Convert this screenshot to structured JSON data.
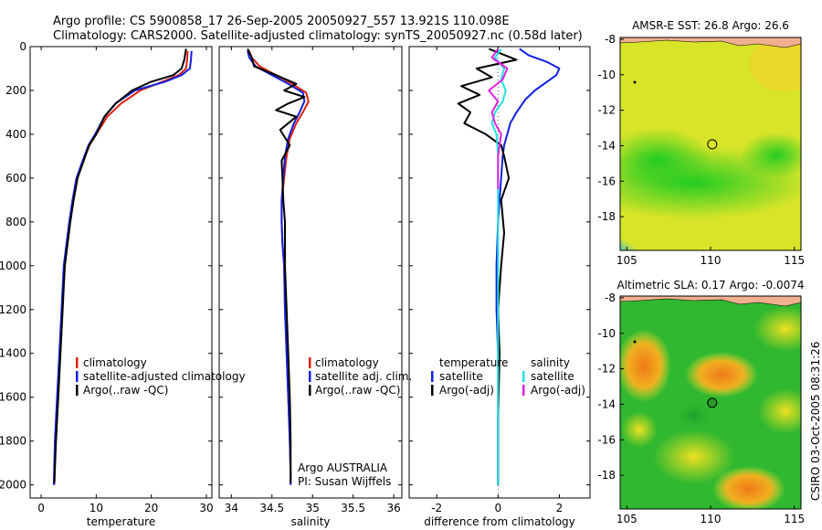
{
  "header": {
    "line1": "Argo profile: CS 5900858_17 26-Sep-2005 20050927_557 13.921S 110.098E",
    "line2": "Climatology: CARS2000. Satellite-adjusted climatology: synTS_20050927.nc (0.58d later)"
  },
  "footer_stamp": "CSIRO 03-Oct-2005 08:31:26",
  "colors": {
    "climatology": "#e02010",
    "satellite": "#1020e0",
    "argo": "#000000",
    "temp_satellite": "#1020e0",
    "sal_satellite": "#22e0e0",
    "sal_argo": "#e020e0"
  },
  "chart_data": [
    {
      "type": "line",
      "name": "temperature-profile",
      "xlabel": "temperature",
      "xlim": [
        -2,
        31
      ],
      "xticks": [
        0,
        10,
        20,
        30
      ],
      "ylim": [
        2060,
        0
      ],
      "yticks": [
        0,
        200,
        400,
        600,
        800,
        1000,
        1200,
        1400,
        1600,
        1800,
        2000
      ],
      "legend": [
        "climatology",
        "satellite-adjusted climatology",
        "Argo(..raw -QC)"
      ],
      "legend_position": "lower-right",
      "series": [
        {
          "name": "climatology",
          "color_key": "climatology",
          "x": [
            26.6,
            26.5,
            26.3,
            25.0,
            22.0,
            18.0,
            14.5,
            12.0,
            10.0,
            8.8,
            7.5,
            6.5,
            5.8,
            5.2,
            4.7,
            4.2,
            3.8,
            3.4,
            3.0,
            2.6,
            2.4
          ],
          "y": [
            20,
            60,
            100,
            130,
            160,
            200,
            260,
            320,
            400,
            450,
            530,
            600,
            700,
            800,
            900,
            1000,
            1200,
            1400,
            1600,
            1800,
            2000
          ]
        },
        {
          "name": "satellite-adjusted climatology",
          "color_key": "satellite",
          "x": [
            27.3,
            27.2,
            27.0,
            25.5,
            22.5,
            17.0,
            13.5,
            11.5,
            9.8,
            8.6,
            7.4,
            6.4,
            5.7,
            5.1,
            4.6,
            4.1,
            3.7,
            3.3,
            2.9,
            2.5,
            2.3
          ],
          "y": [
            20,
            60,
            100,
            130,
            160,
            200,
            260,
            320,
            400,
            450,
            530,
            600,
            700,
            800,
            900,
            1000,
            1200,
            1400,
            1600,
            1800,
            2000
          ]
        },
        {
          "name": "Argo(..raw -QC)",
          "color_key": "argo",
          "x": [
            26.3,
            26.0,
            25.5,
            24.0,
            20.0,
            16.5,
            13.5,
            11.5,
            10.0,
            8.7,
            7.6,
            6.6,
            5.9,
            5.3,
            4.8,
            4.3,
            3.9,
            3.5,
            3.1,
            2.7,
            2.4
          ],
          "y": [
            10,
            60,
            100,
            130,
            160,
            200,
            260,
            320,
            400,
            450,
            530,
            600,
            700,
            800,
            900,
            1000,
            1200,
            1400,
            1600,
            1800,
            1990
          ]
        }
      ]
    },
    {
      "type": "line",
      "name": "salinity-profile",
      "xlabel": "salinity",
      "xlim": [
        33.85,
        36.1
      ],
      "xticks": [
        34,
        34.5,
        35,
        35.5,
        36
      ],
      "xticklabels": [
        "34",
        "34.5",
        "35",
        "35.5",
        "36"
      ],
      "ylim": [
        2060,
        0
      ],
      "legend": [
        "climatology",
        "satellite adj. clim.",
        "Argo(..raw -QC)"
      ],
      "legend_position": "lower-right",
      "annotations": [
        "Argo AUSTRALIA",
        "PI: Susan Wijffels"
      ],
      "series": [
        {
          "name": "climatology",
          "color_key": "climatology",
          "x": [
            34.22,
            34.25,
            34.35,
            34.55,
            34.75,
            34.92,
            34.95,
            34.88,
            34.8,
            34.72,
            34.68,
            34.65,
            34.62,
            34.62,
            34.63,
            34.65,
            34.66,
            34.68,
            34.7,
            34.72,
            34.73,
            34.73
          ],
          "y": [
            20,
            50,
            90,
            130,
            170,
            210,
            250,
            300,
            350,
            420,
            500,
            600,
            700,
            800,
            900,
            1000,
            1200,
            1400,
            1600,
            1800,
            1950,
            2000
          ]
        },
        {
          "name": "satellite adj. clim.",
          "color_key": "satellite",
          "x": [
            34.2,
            34.22,
            34.3,
            34.5,
            34.7,
            34.88,
            34.9,
            34.84,
            34.77,
            34.7,
            34.66,
            34.64,
            34.62,
            34.62,
            34.63,
            34.65,
            34.66,
            34.68,
            34.7,
            34.72,
            34.73,
            34.73
          ],
          "y": [
            20,
            50,
            90,
            130,
            170,
            210,
            250,
            300,
            350,
            420,
            500,
            600,
            700,
            800,
            900,
            1000,
            1200,
            1400,
            1600,
            1800,
            1950,
            2000
          ]
        },
        {
          "name": "Argo(..raw -QC)",
          "color_key": "argo",
          "x": [
            34.2,
            34.25,
            34.28,
            34.55,
            34.8,
            34.65,
            34.9,
            34.7,
            34.55,
            34.8,
            34.6,
            34.72,
            34.62,
            34.63,
            34.64,
            34.66,
            34.66,
            34.68,
            34.7,
            34.72,
            34.73,
            34.73
          ],
          "y": [
            10,
            50,
            90,
            130,
            170,
            200,
            230,
            260,
            290,
            320,
            380,
            450,
            520,
            600,
            700,
            800,
            1000,
            1200,
            1400,
            1600,
            1800,
            1990
          ]
        }
      ]
    },
    {
      "type": "line",
      "name": "difference-profile",
      "xlabel": "difference from climatology",
      "xlim": [
        -2.9,
        3.0
      ],
      "xticks": [
        -2,
        0,
        2
      ],
      "ylim": [
        2060,
        0
      ],
      "legend_columns": [
        {
          "title": "temperature",
          "items": [
            "satellite",
            "Argo(-adj)"
          ]
        },
        {
          "title": "salinity",
          "items": [
            "satellite",
            "Argo(-adj)"
          ]
        }
      ],
      "legend_position": "lower-center",
      "series": [
        {
          "name": "temperature satellite",
          "color_key": "temp_satellite",
          "x": [
            0.7,
            1.0,
            1.6,
            2.0,
            1.9,
            1.6,
            1.2,
            0.9,
            0.6,
            0.4,
            0.3,
            0.2,
            0.15,
            0.1,
            0.05,
            0.0,
            -0.05,
            -0.05,
            0.0,
            0.0,
            0.0
          ],
          "y": [
            10,
            40,
            70,
            100,
            130,
            160,
            200,
            240,
            300,
            350,
            400,
            450,
            500,
            600,
            700,
            800,
            1000,
            1200,
            1400,
            1700,
            2000
          ]
        },
        {
          "name": "temperature Argo(-adj)",
          "color_key": "argo",
          "x": [
            -0.3,
            0.6,
            -0.7,
            -0.2,
            -1.2,
            -0.6,
            -1.3,
            -0.9,
            -1.1,
            -0.4,
            0.1,
            0.2,
            0.35,
            0.1,
            0.2,
            0.1,
            0.0,
            0.05,
            0.0,
            0.0
          ],
          "y": [
            10,
            60,
            100,
            140,
            180,
            220,
            260,
            300,
            350,
            400,
            450,
            500,
            600,
            700,
            850,
            1000,
            1200,
            1400,
            1700,
            2000
          ]
        },
        {
          "name": "salinity satellite",
          "color_key": "sal_satellite",
          "x": [
            0.1,
            -0.1,
            0.2,
            0.1,
            0.25,
            0.15,
            -0.1,
            -0.2,
            -0.05,
            0.0,
            0.0,
            0.0,
            0.0,
            0.0,
            0.0
          ],
          "y": [
            10,
            50,
            100,
            150,
            200,
            250,
            300,
            350,
            400,
            500,
            700,
            1000,
            1300,
            1700,
            2000
          ]
        },
        {
          "name": "salinity Argo(-adj)",
          "color_key": "sal_argo",
          "x": [
            0.0,
            -0.2,
            0.3,
            0.15,
            -0.3,
            0.0,
            -0.2,
            -0.1,
            0.1,
            0.05,
            0.0,
            0.0
          ],
          "y": [
            10,
            50,
            100,
            150,
            200,
            250,
            300,
            350,
            400,
            450,
            500,
            650
          ]
        }
      ]
    },
    {
      "type": "heatmap",
      "name": "sst-map",
      "title": "AMSR-E SST: 26.8 Argo: 26.6",
      "xlim": [
        104.6,
        115.4
      ],
      "ylim": [
        -19.9,
        -7.9
      ],
      "xticks": [
        105,
        110,
        115
      ],
      "yticks": [
        -8,
        -10,
        -12,
        -14,
        -16,
        -18
      ],
      "marker": {
        "lon": 110.098,
        "lat": -13.921,
        "filled": false
      }
    },
    {
      "type": "heatmap",
      "name": "sla-map",
      "title": "Altimetric SLA: 0.17 Argo: -0.0074",
      "xlim": [
        104.6,
        115.4
      ],
      "ylim": [
        -19.9,
        -7.9
      ],
      "xticks": [
        105,
        110,
        115
      ],
      "yticks": [
        -8,
        -10,
        -12,
        -14,
        -16,
        -18
      ],
      "marker": {
        "lon": 110.098,
        "lat": -13.921,
        "filled": true
      }
    }
  ]
}
